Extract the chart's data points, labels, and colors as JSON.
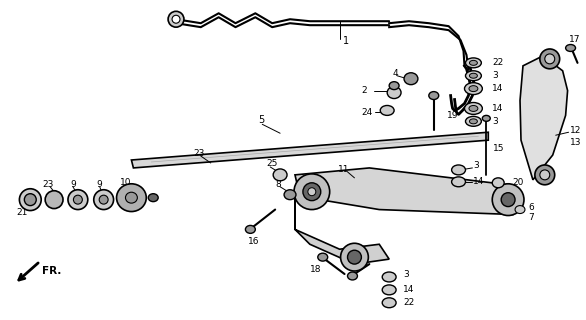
{
  "bg_color": "#ffffff",
  "line_color": "#000000",
  "fig_width": 5.86,
  "fig_height": 3.2,
  "dpi": 100,
  "gray_light": "#cccccc",
  "gray_mid": "#999999",
  "gray_dark": "#666666"
}
